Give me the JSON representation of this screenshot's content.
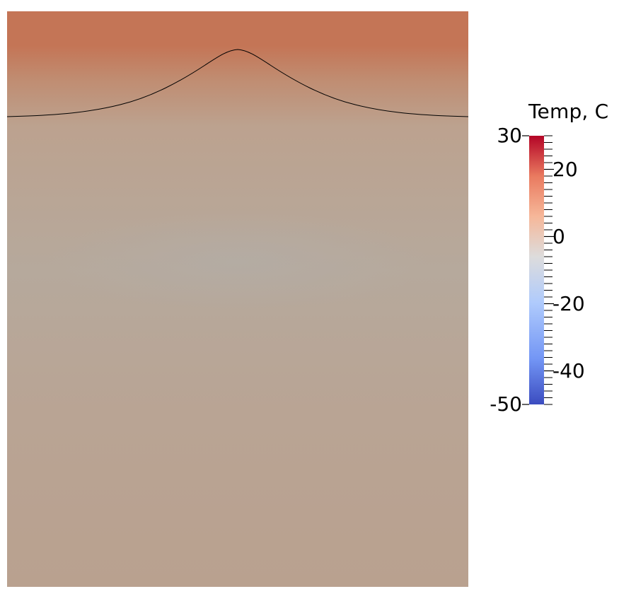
{
  "colorbar": {
    "title": "Temp, C",
    "range": [
      -50,
      30
    ],
    "tick_labels": [
      {
        "value": 30,
        "text": "30"
      },
      {
        "value": 20,
        "text": "20"
      },
      {
        "value": 0,
        "text": "0"
      },
      {
        "value": -20,
        "text": "-20"
      },
      {
        "value": -40,
        "text": "-40"
      },
      {
        "value": -50,
        "text": "-50"
      }
    ],
    "colormap": [
      "#3b4cc0",
      "#7396f5",
      "#b0cbfc",
      "#dddcdc",
      "#f6b799",
      "#e97a5f",
      "#b40426"
    ]
  },
  "field": {
    "top_color": "#c47455",
    "ridge_color": "#c9967c",
    "interior_color": "#b8a797",
    "bottom_color": "#b8a08f",
    "contour_color": "#000000"
  }
}
